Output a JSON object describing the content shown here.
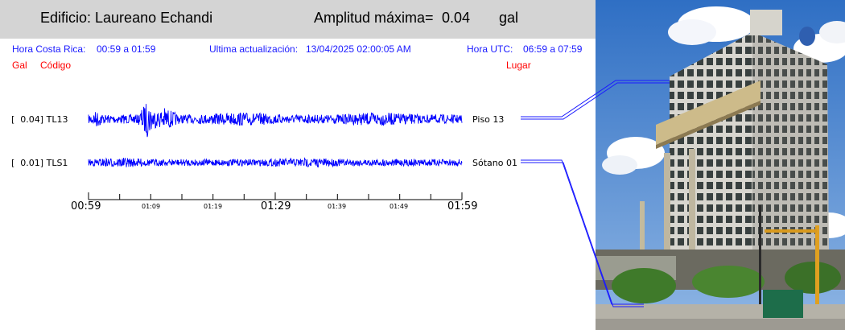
{
  "header": {
    "building_label": "Edificio: Laureano Echandi",
    "amplitude_label": "Amplitud máxima=",
    "amplitude_value": "0.04",
    "amplitude_unit": "gal"
  },
  "info": {
    "local_time_label": "Hora Costa Rica:",
    "local_time_range": "00:59 a 01:59",
    "update_label": "Ultima actualización:",
    "update_value": "13/04/2025 02:00:05 AM",
    "utc_label": "Hora UTC:",
    "utc_range": "06:59 a 07:59"
  },
  "columns": {
    "gal": "Gal",
    "code": "Código",
    "place": "Lugar"
  },
  "channels": [
    {
      "gal": "0.04",
      "code": "TL13",
      "place": "Piso 13"
    },
    {
      "gal": "0.01",
      "code": "TLS1",
      "place": "Sótano 01"
    }
  ],
  "axis": {
    "major_ticks": [
      "00:59",
      "01:29",
      "01:59"
    ],
    "minor_ticks": [
      "01:09",
      "01:19",
      "01:39",
      "01:49"
    ]
  },
  "colors": {
    "trace": "#0000ff",
    "info_text": "#1a1aff",
    "column_headers": "#ff0000",
    "header_bg": "#d4d4d4"
  },
  "photo": {
    "icon": "building-photo"
  }
}
